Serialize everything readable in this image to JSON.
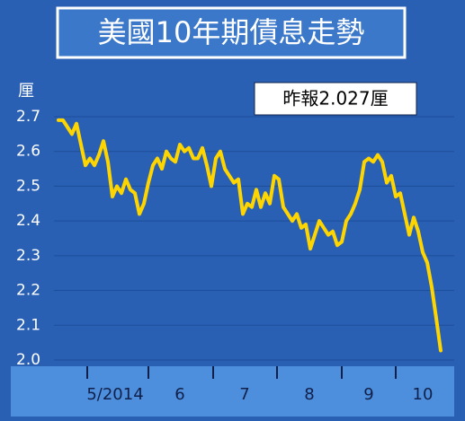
{
  "chart_data": {
    "type": "line",
    "title": "美國10年期債息走勢",
    "y_unit": "厘",
    "annotation": "昨報2.027厘",
    "month_labels": [
      "5/2014",
      "6",
      "7",
      "8",
      "9",
      "10"
    ],
    "color": "#ffd500",
    "ylim": [
      2.0,
      2.7
    ],
    "yticks": [
      {
        "value": 2.0,
        "label": "2.0"
      },
      2.1,
      2.2,
      2.3,
      2.4,
      2.5,
      2.6,
      2.7
    ],
    "grid": true,
    "values": [
      2.69,
      2.69,
      2.67,
      2.65,
      2.68,
      2.62,
      2.56,
      2.58,
      2.56,
      2.59,
      2.63,
      2.57,
      2.47,
      2.5,
      2.48,
      2.52,
      2.49,
      2.48,
      2.42,
      2.45,
      2.51,
      2.56,
      2.58,
      2.55,
      2.6,
      2.58,
      2.57,
      2.62,
      2.6,
      2.61,
      2.58,
      2.58,
      2.61,
      2.56,
      2.5,
      2.58,
      2.6,
      2.55,
      2.53,
      2.51,
      2.52,
      2.42,
      2.45,
      2.44,
      2.49,
      2.44,
      2.48,
      2.45,
      2.53,
      2.52,
      2.44,
      2.42,
      2.4,
      2.42,
      2.38,
      2.39,
      2.32,
      2.36,
      2.4,
      2.38,
      2.36,
      2.37,
      2.33,
      2.34,
      2.4,
      2.42,
      2.45,
      2.49,
      2.57,
      2.58,
      2.57,
      2.59,
      2.57,
      2.51,
      2.53,
      2.47,
      2.48,
      2.42,
      2.36,
      2.41,
      2.37,
      2.31,
      2.28,
      2.21,
      2.12,
      2.027
    ]
  }
}
